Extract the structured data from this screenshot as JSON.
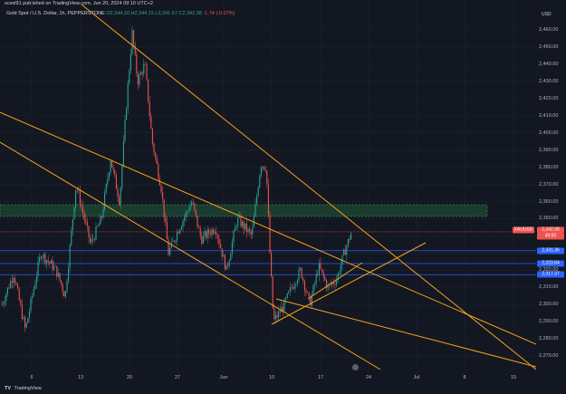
{
  "header": {
    "publish_info": "scesl91 published on TradingView.com, Jun 20, 2024 09:10 UTC+2"
  },
  "legend": {
    "symbol": "Gold Spot / U.S. Dollar, 1h, PEPPERSTONE",
    "open": "O2,344.10",
    "high": "H2,344.19",
    "low": "L2,341.67",
    "close": "C2,342.38",
    "change": "-1.74 (-0.07%)"
  },
  "axis": {
    "currency": "USD",
    "price_ticks": [
      "2,460.00",
      "2,450.00",
      "2,440.00",
      "2,430.00",
      "2,420.00",
      "2,410.00",
      "2,400.00",
      "2,390.00",
      "2,380.00",
      "2,370.00",
      "2,360.00",
      "2,350.00",
      "2,340.00",
      "2,330.00",
      "2,320.00",
      "2,310.00",
      "2,300.00",
      "2,290.00",
      "2,280.00",
      "2,270.00"
    ],
    "time_ticks": [
      "6",
      "13",
      "20",
      "27",
      "Jun",
      "10",
      "17",
      "24",
      "Jul",
      "8",
      "15"
    ]
  },
  "price_labels": {
    "symbol_tag": "XAUUSD",
    "current_price": "2,342.38",
    "countdown": "49:50",
    "level_1": "2,331.36",
    "level_2": "2,323.84",
    "level_3": "2,317.37"
  },
  "colors": {
    "background": "#131722",
    "up": "#26a69a",
    "down": "#ef5350",
    "trendline": "#f7a21b",
    "level": "#2962ff"
  },
  "footer": {
    "brand": "TradingView"
  }
}
